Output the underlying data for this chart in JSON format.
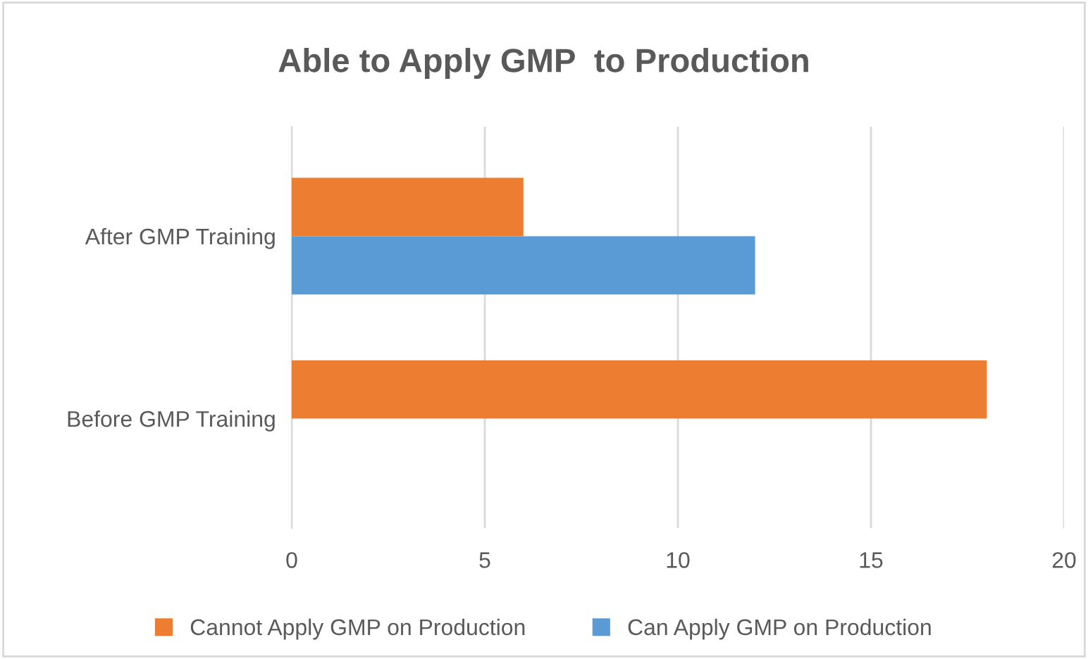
{
  "chart_data": {
    "type": "bar",
    "orientation": "horizontal",
    "title": "Able to Apply GMP  to Production",
    "categories": [
      "After GMP Training",
      "Before GMP Training"
    ],
    "series": [
      {
        "name": "Cannot Apply GMP on Production",
        "color": "#ed7d31",
        "values": [
          6,
          18
        ]
      },
      {
        "name": "Can Apply GMP on Production",
        "color": "#5b9bd5",
        "values": [
          12,
          0
        ]
      }
    ],
    "xlim": [
      0,
      20
    ],
    "xticks": [
      0,
      5,
      10,
      15,
      20
    ],
    "grid": "x",
    "legend": "bottom"
  }
}
